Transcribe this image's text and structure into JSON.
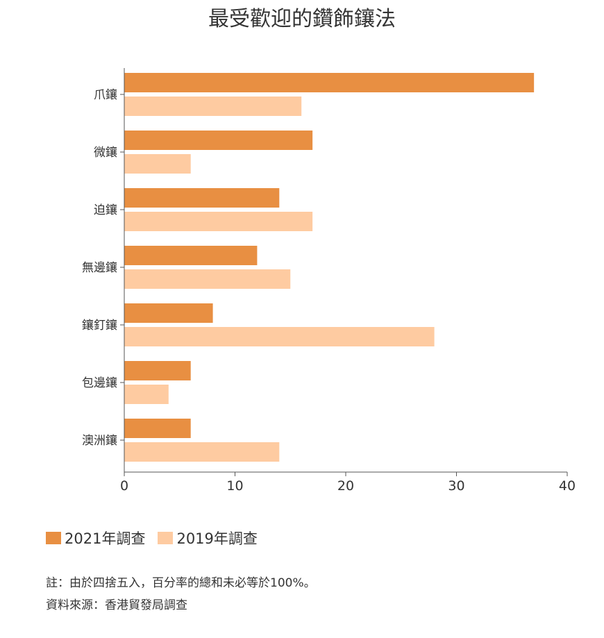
{
  "chart_data": {
    "type": "bar",
    "orientation": "horizontal",
    "title": "最受歡迎的鑽飾鑲法",
    "categories": [
      "爪鑲",
      "微鑲",
      "迫鑲",
      "無邊鑲",
      "鑲釘鑲",
      "包邊鑲",
      "澳洲鑲"
    ],
    "series": [
      {
        "name": "2021年調查",
        "color": "#E88F42",
        "values": [
          37,
          17,
          14,
          12,
          8,
          6,
          6
        ]
      },
      {
        "name": "2019年調查",
        "color": "#FECBA1",
        "values": [
          16,
          6,
          17,
          15,
          28,
          4,
          14
        ]
      }
    ],
    "xlim": [
      0,
      40
    ],
    "xticks": [
      0,
      10,
      20,
      30,
      40
    ],
    "grid": false,
    "legend_position": "bottom-left"
  },
  "notes": {
    "line1": "註：由於四捨五入，百分率的總和未必等於100%。",
    "line2": "資料來源：香港貿發局調查"
  }
}
